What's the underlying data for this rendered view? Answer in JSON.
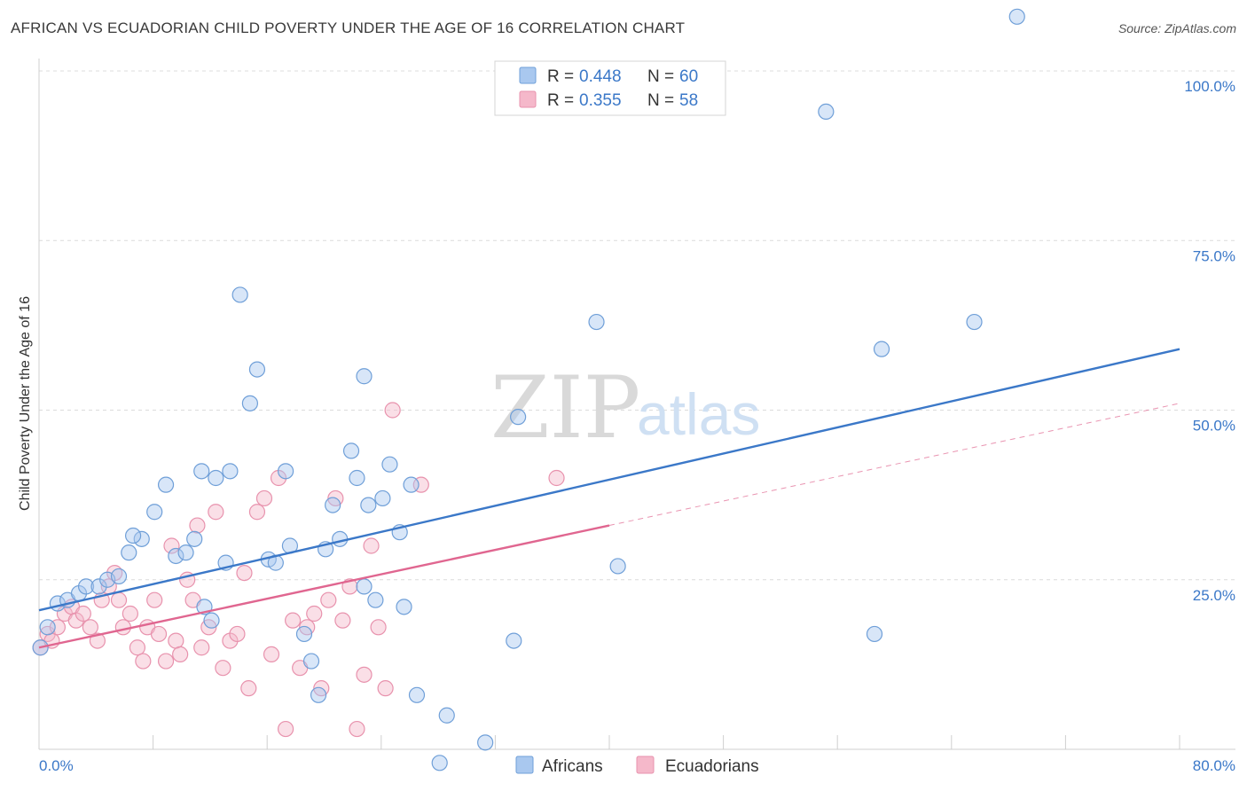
{
  "title": "AFRICAN VS ECUADORIAN CHILD POVERTY UNDER THE AGE OF 16 CORRELATION CHART",
  "source": "Source: ZipAtlas.com",
  "watermark": {
    "part1": "ZIP",
    "part2": "atlas"
  },
  "legend": {
    "rows": [
      {
        "r_label": "R =",
        "r_value": "0.448",
        "n_label": "N =",
        "n_value": "60",
        "color": "#a9c8ef"
      },
      {
        "r_label": "R =",
        "r_value": "0.355",
        "n_label": "N =",
        "n_value": "58",
        "color": "#f5b8ca"
      }
    ]
  },
  "bottom_legend": [
    "Africans",
    "Ecuadorians"
  ],
  "chart_data": {
    "type": "scatter",
    "xlabel": "",
    "ylabel": "Child Poverty Under the Age of 16",
    "xlim": [
      0,
      80
    ],
    "ylim": [
      0,
      100
    ],
    "x_tick_labels": [
      "0.0%",
      "80.0%"
    ],
    "y_ticks": [
      25,
      50,
      75,
      100
    ],
    "y_tick_labels": [
      "25.0%",
      "50.0%",
      "75.0%",
      "100.0%"
    ],
    "grid": true,
    "legend_position": "top-center",
    "series": [
      {
        "name": "Africans",
        "color": "#a9c8ef",
        "stroke": "#6f9fd8",
        "trend_color": "#3b78c8",
        "trend": {
          "x0": 0,
          "y0": 20.5,
          "x1": 80,
          "y1": 59
        },
        "points": [
          [
            0.1,
            15
          ],
          [
            0.6,
            18
          ],
          [
            1.3,
            21.5
          ],
          [
            2,
            22
          ],
          [
            2.8,
            23
          ],
          [
            3.3,
            24
          ],
          [
            4.2,
            24
          ],
          [
            4.8,
            25
          ],
          [
            5.6,
            25.5
          ],
          [
            6.3,
            29
          ],
          [
            7.2,
            31
          ],
          [
            6.6,
            31.5
          ],
          [
            8.1,
            35
          ],
          [
            8.9,
            39
          ],
          [
            9.6,
            28.5
          ],
          [
            10.3,
            29
          ],
          [
            10.9,
            31
          ],
          [
            11.4,
            41
          ],
          [
            12.1,
            19
          ],
          [
            11.6,
            21
          ],
          [
            12.4,
            40
          ],
          [
            13.4,
            41
          ],
          [
            14.1,
            67
          ],
          [
            13.1,
            27.5
          ],
          [
            14.8,
            51
          ],
          [
            15.3,
            56
          ],
          [
            16.1,
            28
          ],
          [
            16.6,
            27.5
          ],
          [
            17.3,
            41
          ],
          [
            17.6,
            30
          ],
          [
            18.6,
            17
          ],
          [
            19.1,
            13
          ],
          [
            19.6,
            8
          ],
          [
            20.1,
            29.5
          ],
          [
            20.6,
            36
          ],
          [
            21.1,
            31
          ],
          [
            21.9,
            44
          ],
          [
            22.3,
            40
          ],
          [
            22.8,
            55
          ],
          [
            23.1,
            36
          ],
          [
            23.6,
            22
          ],
          [
            24.1,
            37
          ],
          [
            24.6,
            42
          ],
          [
            25.3,
            32
          ],
          [
            25.6,
            21
          ],
          [
            26.1,
            39
          ],
          [
            26.5,
            8
          ],
          [
            28.1,
            -2
          ],
          [
            28.6,
            5
          ],
          [
            31.3,
            1
          ],
          [
            33.3,
            16
          ],
          [
            33.6,
            49
          ],
          [
            39.1,
            63
          ],
          [
            40.6,
            27
          ],
          [
            55.2,
            94
          ],
          [
            58.6,
            17
          ],
          [
            59.1,
            59
          ],
          [
            65.6,
            63
          ],
          [
            68.6,
            108
          ],
          [
            22.8,
            24
          ]
        ]
      },
      {
        "name": "Ecuadorians",
        "color": "#f5b8ca",
        "stroke": "#e892ad",
        "trend_color": "#e06690",
        "trend": {
          "x0": 0,
          "y0": 15,
          "x1": 40,
          "y1": 33
        },
        "trend_ext": {
          "x0": 40,
          "y0": 33,
          "x1": 80,
          "y1": 51
        },
        "points": [
          [
            0.1,
            15
          ],
          [
            0.6,
            17
          ],
          [
            0.9,
            16
          ],
          [
            1.3,
            18
          ],
          [
            1.8,
            20
          ],
          [
            2.3,
            21
          ],
          [
            2.6,
            19
          ],
          [
            3.1,
            20
          ],
          [
            3.6,
            18
          ],
          [
            4.1,
            16
          ],
          [
            4.4,
            22
          ],
          [
            4.9,
            24
          ],
          [
            5.3,
            26
          ],
          [
            5.6,
            22
          ],
          [
            5.9,
            18
          ],
          [
            6.4,
            20
          ],
          [
            6.9,
            15
          ],
          [
            7.3,
            13
          ],
          [
            7.6,
            18
          ],
          [
            8.1,
            22
          ],
          [
            8.4,
            17
          ],
          [
            8.9,
            13
          ],
          [
            9.3,
            30
          ],
          [
            9.6,
            16
          ],
          [
            9.9,
            14
          ],
          [
            10.4,
            25
          ],
          [
            10.8,
            22
          ],
          [
            11.1,
            33
          ],
          [
            11.4,
            15
          ],
          [
            11.9,
            18
          ],
          [
            12.4,
            35
          ],
          [
            12.9,
            12
          ],
          [
            13.4,
            16
          ],
          [
            13.9,
            17
          ],
          [
            14.4,
            26
          ],
          [
            14.7,
            9
          ],
          [
            15.3,
            35
          ],
          [
            15.8,
            37
          ],
          [
            16.3,
            14
          ],
          [
            16.8,
            40
          ],
          [
            17.3,
            3
          ],
          [
            17.8,
            19
          ],
          [
            18.3,
            12
          ],
          [
            18.8,
            18
          ],
          [
            19.3,
            20
          ],
          [
            19.8,
            9
          ],
          [
            20.3,
            22
          ],
          [
            20.8,
            37
          ],
          [
            21.3,
            19
          ],
          [
            21.8,
            24
          ],
          [
            22.3,
            3
          ],
          [
            22.8,
            11
          ],
          [
            23.3,
            30
          ],
          [
            23.8,
            18
          ],
          [
            24.3,
            9
          ],
          [
            24.8,
            50
          ],
          [
            26.8,
            39
          ],
          [
            36.3,
            40
          ]
        ]
      }
    ]
  }
}
